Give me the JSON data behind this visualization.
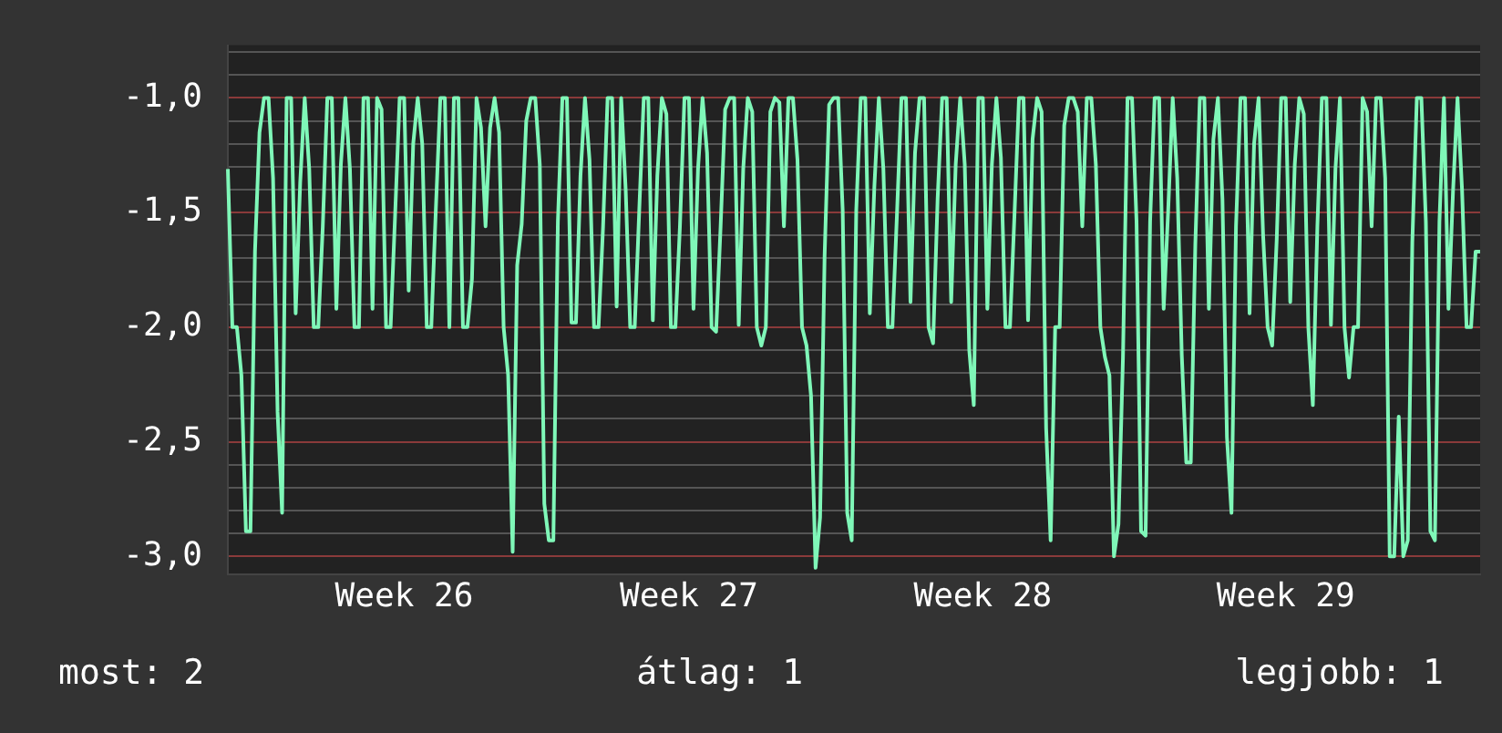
{
  "chart_data": {
    "type": "line",
    "annotations": [
      "most: 2",
      "átlag: 1",
      "legjobb: 1"
    ],
    "categories": [
      null,
      null,
      null,
      null,
      null,
      null,
      null,
      null,
      null,
      null,
      null,
      null,
      null,
      null,
      null,
      null,
      null,
      null,
      null,
      null,
      null,
      null,
      null,
      null,
      null,
      null,
      null,
      null,
      null,
      null,
      null,
      null,
      null,
      null,
      null,
      null,
      null,
      null,
      null,
      "Week 26",
      null,
      null,
      null,
      null,
      null,
      null,
      null,
      null,
      null,
      null,
      null,
      null,
      null,
      null,
      null,
      null,
      null,
      null,
      null,
      null,
      null,
      null,
      null,
      null,
      null,
      null,
      null,
      null,
      null,
      null,
      null,
      null,
      null,
      null,
      null,
      null,
      null,
      null,
      null,
      null,
      null,
      null,
      null,
      null,
      null,
      null,
      null,
      null,
      null,
      null,
      null,
      null,
      null,
      null,
      null,
      null,
      null,
      null,
      null,
      null,
      null,
      null,
      "Week 27",
      null,
      null,
      null,
      null,
      null,
      null,
      null,
      null,
      null,
      null,
      null,
      null,
      null,
      null,
      null,
      null,
      null,
      null,
      null,
      null,
      null,
      null,
      null,
      null,
      null,
      null,
      null,
      null,
      null,
      null,
      null,
      null,
      null,
      null,
      null,
      null,
      null,
      null,
      null,
      null,
      null,
      null,
      null,
      null,
      null,
      null,
      null,
      null,
      null,
      null,
      null,
      null,
      null,
      null,
      null,
      null,
      null,
      null,
      null,
      null,
      null,
      null,
      null,
      null,
      "Week 28",
      null,
      null,
      null,
      null,
      null,
      null,
      null,
      null,
      null,
      null,
      null,
      null,
      null,
      null,
      null,
      null,
      null,
      null,
      null,
      null,
      null,
      null,
      null,
      null,
      null,
      null,
      null,
      null,
      null,
      null,
      null,
      null,
      null,
      null,
      null,
      null,
      null,
      null,
      null,
      null,
      null,
      null,
      null,
      null,
      null,
      null,
      null,
      null,
      null,
      null,
      null,
      null,
      null,
      null,
      null,
      null,
      null,
      null,
      null,
      null,
      null,
      null,
      null,
      null,
      null,
      null,
      "Week 29",
      null,
      null,
      null,
      null,
      null,
      null,
      null,
      null,
      null,
      null,
      null,
      null,
      null,
      null,
      null,
      null,
      null,
      null,
      null,
      null,
      null,
      null,
      null,
      null,
      null,
      null,
      null,
      null,
      null,
      null,
      null,
      null,
      null,
      null,
      null,
      null,
      null,
      null,
      null,
      null,
      null,
      null,
      null
    ],
    "ylim": [
      -3.08,
      -0.77
    ],
    "yticks": [
      {
        "value": -3,
        "label": "-3,0"
      },
      {
        "value": -2.9,
        "label": null
      },
      {
        "value": -2.8,
        "label": null
      },
      {
        "value": -2.7,
        "label": null
      },
      {
        "value": -2.6,
        "label": null
      },
      {
        "value": -2.5,
        "label": "-2,5"
      },
      {
        "value": -2.4,
        "label": null
      },
      {
        "value": -2.3,
        "label": null
      },
      {
        "value": -2.2,
        "label": null
      },
      {
        "value": -2.1,
        "label": null
      },
      {
        "value": -2,
        "label": "-2,0"
      },
      {
        "value": -1.9,
        "label": null
      },
      {
        "value": -1.8,
        "label": null
      },
      {
        "value": -1.7,
        "label": null
      },
      {
        "value": -1.6,
        "label": null
      },
      {
        "value": -1.5,
        "label": "-1,5"
      },
      {
        "value": -1.4,
        "label": null
      },
      {
        "value": -1.3,
        "label": null
      },
      {
        "value": -1.2,
        "label": null
      },
      {
        "value": -1.1,
        "label": null
      },
      {
        "value": -1,
        "label": "-1,0"
      },
      {
        "value": -0.9,
        "label": null
      },
      {
        "value": -0.8,
        "label": null
      }
    ],
    "grid": "y",
    "legend": false,
    "marker": "none",
    "line_style": "solid",
    "series": [
      {
        "color": "#7ff7b8",
        "values": [
          -1.31,
          -2.0,
          -2.0,
          -2.21,
          -2.89,
          -2.89,
          -1.67,
          -1.15,
          -1.0,
          -1.0,
          -1.35,
          -2.37,
          -2.81,
          -1.0,
          -1.0,
          -1.94,
          -1.37,
          -1.0,
          -1.31,
          -2.0,
          -2.0,
          -1.56,
          -1.0,
          -1.0,
          -1.92,
          -1.29,
          -1.0,
          -1.31,
          -2.0,
          -2.0,
          -1.0,
          -1.0,
          -1.92,
          -1.0,
          -1.05,
          -2.0,
          -2.0,
          -1.51,
          -1.0,
          -1.0,
          -1.84,
          -1.2,
          -1.0,
          -1.2,
          -2.0,
          -2.0,
          -1.49,
          -1.0,
          -1.0,
          -2.0,
          -1.0,
          -1.0,
          -2.0,
          -2.0,
          -1.79,
          -1.0,
          -1.13,
          -1.56,
          -1.13,
          -1.0,
          -1.15,
          -2.0,
          -2.21,
          -2.98,
          -1.73,
          -1.55,
          -1.1,
          -1.0,
          -1.0,
          -1.29,
          -2.77,
          -2.93,
          -2.93,
          -1.54,
          -1.0,
          -1.0,
          -1.98,
          -1.98,
          -1.34,
          -1.0,
          -1.27,
          -2.0,
          -2.0,
          -1.56,
          -1.0,
          -1.0,
          -1.91,
          -1.0,
          -1.4,
          -2.0,
          -2.0,
          -1.49,
          -1.0,
          -1.0,
          -1.97,
          -1.34,
          -1.0,
          -1.07,
          -2.0,
          -2.0,
          -1.56,
          -1.0,
          -1.0,
          -1.92,
          -1.31,
          -1.0,
          -1.24,
          -2.0,
          -2.02,
          -1.56,
          -1.05,
          -1.0,
          -1.0,
          -1.99,
          -1.31,
          -1.0,
          -1.06,
          -2.0,
          -2.08,
          -2.0,
          -1.06,
          -1.0,
          -1.02,
          -1.56,
          -1.0,
          -1.0,
          -1.27,
          -2.0,
          -2.08,
          -2.3,
          -3.05,
          -2.83,
          -1.69,
          -1.03,
          -1.0,
          -1.0,
          -1.49,
          -2.81,
          -2.93,
          -1.49,
          -1.0,
          -1.0,
          -1.94,
          -1.39,
          -1.0,
          -1.31,
          -2.0,
          -2.0,
          -1.51,
          -1.0,
          -1.0,
          -1.89,
          -1.24,
          -1.0,
          -1.0,
          -2.0,
          -2.07,
          -1.44,
          -1.0,
          -1.0,
          -1.89,
          -1.29,
          -1.0,
          -1.29,
          -2.1,
          -2.34,
          -1.0,
          -1.0,
          -1.92,
          -1.29,
          -1.0,
          -1.26,
          -2.0,
          -2.0,
          -1.51,
          -1.0,
          -1.0,
          -1.97,
          -1.18,
          -1.0,
          -1.06,
          -2.44,
          -2.93,
          -2.0,
          -2.0,
          -1.12,
          -1.0,
          -1.0,
          -1.06,
          -1.56,
          -1.0,
          -1.0,
          -1.29,
          -2.0,
          -2.13,
          -2.21,
          -3.0,
          -2.86,
          -2.13,
          -1.0,
          -1.0,
          -1.54,
          -2.89,
          -2.91,
          -1.54,
          -1.0,
          -1.0,
          -1.92,
          -1.49,
          -1.0,
          -1.35,
          -2.12,
          -2.59,
          -2.59,
          -1.64,
          -1.0,
          -1.0,
          -1.92,
          -1.18,
          -1.0,
          -1.44,
          -2.48,
          -2.81,
          -1.56,
          -1.0,
          -1.0,
          -1.94,
          -1.2,
          -1.0,
          -1.6,
          -2.0,
          -2.08,
          -1.62,
          -1.0,
          -1.0,
          -1.89,
          -1.29,
          -1.0,
          -1.07,
          -2.0,
          -2.34,
          -1.56,
          -1.0,
          -1.0,
          -1.99,
          -1.31,
          -1.0,
          -2.0,
          -2.22,
          -2.0,
          -2.0,
          -1.0,
          -1.06,
          -1.56,
          -1.0,
          -1.0,
          -1.35,
          -3.0,
          -3.0,
          -2.39,
          -3.0,
          -2.93,
          -1.63,
          -1.0,
          -1.0,
          -1.54,
          -2.89,
          -2.93,
          -1.54,
          -1.0,
          -1.92,
          -1.41,
          -1.0,
          -1.4,
          -2.0,
          -2.0,
          -1.67,
          -1.67
        ]
      }
    ]
  }
}
